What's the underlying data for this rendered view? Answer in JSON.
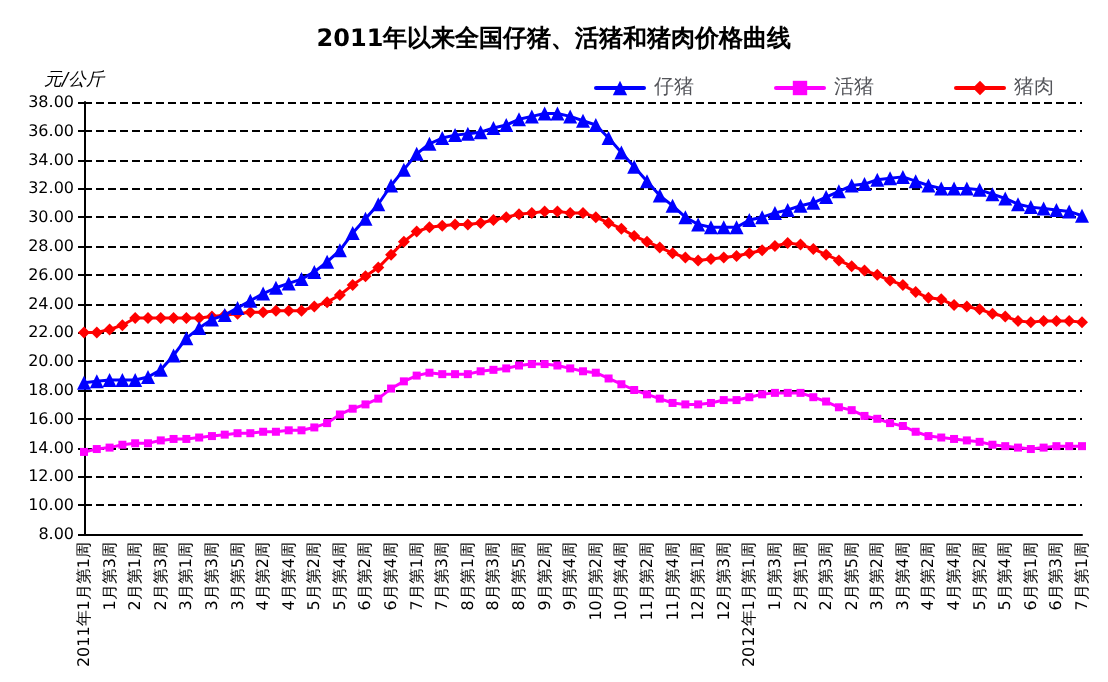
{
  "chart_data": {
    "type": "line",
    "title": "2011年以来全国仔猪、活猪和猪肉价格曲线",
    "ylabel": "元/公斤",
    "categories": [
      "2011年1月第1周",
      null,
      "1月第3周",
      null,
      "2月第1周",
      null,
      "2月第3周",
      null,
      "3月第1周",
      null,
      "3月第3周",
      null,
      "3月第5周",
      null,
      "4月第2周",
      null,
      "4月第4周",
      null,
      "5月第2周",
      null,
      "5月第4周",
      null,
      "6月第2周",
      null,
      "6月第4周",
      null,
      "7月第1周",
      null,
      "7月第3周",
      null,
      "8月第1周",
      null,
      "8月第3周",
      null,
      "8月第5周",
      null,
      "9月第2周",
      null,
      "9月第4周",
      null,
      "10月第2周",
      null,
      "10月第4周",
      null,
      "11月第2周",
      null,
      "11月第4周",
      null,
      "12月第1周",
      null,
      "12月第3周",
      null,
      "2012年1月第1周",
      null,
      "1月第3周",
      null,
      "2月第1周",
      null,
      "2月第3周",
      null,
      "2月第5周",
      null,
      "3月第2周",
      null,
      "3月第4周",
      null,
      "4月第2周",
      null,
      "4月第4周",
      null,
      "5月第2周",
      null,
      "5月第4周",
      null,
      "6月第1周",
      null,
      "6月第3周",
      null,
      "7月第1周"
    ],
    "series": [
      {
        "name": "仔猪",
        "color": "#0000ff",
        "marker": "triangle",
        "values": [
          18.5,
          18.6,
          18.7,
          18.7,
          18.7,
          18.9,
          19.4,
          20.4,
          21.6,
          22.3,
          22.9,
          23.2,
          23.7,
          24.2,
          24.7,
          25.1,
          25.4,
          25.7,
          26.2,
          26.9,
          27.7,
          28.9,
          29.9,
          30.9,
          32.2,
          33.3,
          34.4,
          35.1,
          35.5,
          35.7,
          35.8,
          35.9,
          36.2,
          36.4,
          36.8,
          37.0,
          37.2,
          37.2,
          37.0,
          36.7,
          36.4,
          35.5,
          34.5,
          33.5,
          32.5,
          31.5,
          30.8,
          30.0,
          29.5,
          29.3,
          29.3,
          29.3,
          29.8,
          30.0,
          30.3,
          30.5,
          30.8,
          31.0,
          31.4,
          31.8,
          32.2,
          32.3,
          32.6,
          32.7,
          32.8,
          32.5,
          32.2,
          32.0,
          32.0,
          32.0,
          31.9,
          31.6,
          31.3,
          30.9,
          30.7,
          30.6,
          30.5,
          30.4,
          30.1
        ]
      },
      {
        "name": "活猪",
        "color": "#ff00ff",
        "marker": "square",
        "values": [
          13.7,
          13.9,
          14.0,
          14.2,
          14.3,
          14.3,
          14.5,
          14.6,
          14.6,
          14.7,
          14.8,
          14.9,
          15.0,
          15.0,
          15.1,
          15.1,
          15.2,
          15.2,
          15.4,
          15.7,
          16.3,
          16.7,
          17.0,
          17.4,
          18.1,
          18.6,
          19.0,
          19.2,
          19.1,
          19.1,
          19.1,
          19.3,
          19.4,
          19.5,
          19.7,
          19.8,
          19.8,
          19.7,
          19.5,
          19.3,
          19.2,
          18.8,
          18.4,
          18.0,
          17.7,
          17.4,
          17.1,
          17.0,
          17.0,
          17.1,
          17.3,
          17.3,
          17.5,
          17.7,
          17.8,
          17.8,
          17.8,
          17.5,
          17.2,
          16.8,
          16.6,
          16.2,
          16.0,
          15.7,
          15.5,
          15.1,
          14.8,
          14.7,
          14.6,
          14.5,
          14.4,
          14.2,
          14.1,
          14.0,
          13.9,
          14.0,
          14.1,
          14.1,
          14.1
        ]
      },
      {
        "name": "猪肉",
        "color": "#ff0000",
        "marker": "diamond",
        "values": [
          22.0,
          22.0,
          22.2,
          22.5,
          23.0,
          23.0,
          23.0,
          23.0,
          23.0,
          23.0,
          23.1,
          23.2,
          23.3,
          23.4,
          23.4,
          23.5,
          23.5,
          23.5,
          23.8,
          24.1,
          24.6,
          25.3,
          25.9,
          26.5,
          27.4,
          28.3,
          29.0,
          29.3,
          29.4,
          29.5,
          29.5,
          29.6,
          29.8,
          30.0,
          30.2,
          30.3,
          30.4,
          30.4,
          30.3,
          30.3,
          30.0,
          29.6,
          29.2,
          28.7,
          28.3,
          27.9,
          27.5,
          27.2,
          27.0,
          27.1,
          27.2,
          27.3,
          27.5,
          27.7,
          28.0,
          28.2,
          28.1,
          27.8,
          27.4,
          27.0,
          26.6,
          26.3,
          26.0,
          25.6,
          25.3,
          24.8,
          24.4,
          24.3,
          23.9,
          23.8,
          23.6,
          23.3,
          23.1,
          22.8,
          22.7,
          22.8,
          22.8,
          22.8,
          22.7
        ]
      }
    ],
    "ylim": [
      8,
      38
    ],
    "yticks": [
      {
        "value": 8,
        "label": "8.00"
      },
      {
        "value": 10,
        "label": "10.00"
      },
      {
        "value": 12,
        "label": "12.00"
      },
      {
        "value": 14,
        "label": "14.00"
      },
      {
        "value": 16,
        "label": "16.00"
      },
      {
        "value": 18,
        "label": "18.00"
      },
      {
        "value": 20,
        "label": "20.00"
      },
      {
        "value": 22,
        "label": "22.00"
      },
      {
        "value": 24,
        "label": "24.00"
      },
      {
        "value": 26,
        "label": "26.00"
      },
      {
        "value": 28,
        "label": "28.00"
      },
      {
        "value": 30,
        "label": "30.00"
      },
      {
        "value": 32,
        "label": "32.00"
      },
      {
        "value": 34,
        "label": "34.00"
      },
      {
        "value": 36,
        "label": "36.00"
      },
      {
        "value": 38,
        "label": "38.00"
      }
    ],
    "grid": "y",
    "legend": "top right",
    "line_style": "solid"
  }
}
